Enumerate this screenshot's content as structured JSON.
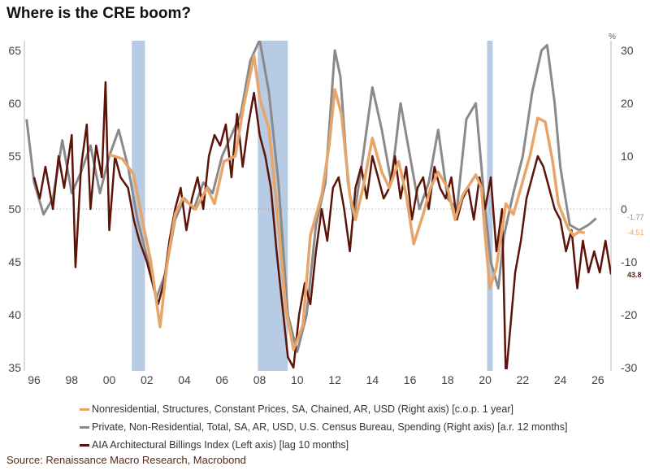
{
  "title": "Where is the CRE boom?",
  "source": "Source: Renaissance Macro Research, Macrobond",
  "chart_data": {
    "type": "line",
    "title": "Where is the CRE boom?",
    "left_axis": {
      "ylim": [
        35,
        65
      ],
      "ticks": [
        35,
        40,
        45,
        50,
        55,
        60,
        65
      ]
    },
    "right_axis": {
      "unit": "%",
      "ylim": [
        -30,
        30
      ],
      "ticks": [
        -30,
        -20,
        -10,
        0,
        10,
        20,
        30
      ]
    },
    "x_axis": {
      "ticks": [
        "96",
        "98",
        "00",
        "02",
        "04",
        "06",
        "08",
        "10",
        "12",
        "14",
        "16",
        "18",
        "20",
        "22",
        "24",
        "26"
      ],
      "xlim": [
        1995.5,
        2026.9
      ]
    },
    "grid": false,
    "reference_line": {
      "axis": "right",
      "value": 0,
      "style": "dotted"
    },
    "recessions": [
      [
        2001.2,
        2001.9
      ],
      [
        2007.9,
        2009.5
      ],
      [
        2020.1,
        2020.4
      ]
    ],
    "legend_position": "bottom",
    "series": [
      {
        "name": "Nonresidential, Structures, Constant Prices, SA, Chained, AR, USD (Right axis) [c.o.p. 1 year]",
        "axis": "right",
        "color": "#e8a56a",
        "last_label": "-4.51",
        "points": [
          [
            2000,
            10.3
          ],
          [
            2000.7,
            9.5
          ],
          [
            2001.3,
            6.5
          ],
          [
            2001.75,
            -2
          ],
          [
            2002.2,
            -9.7
          ],
          [
            2002.7,
            -22.3
          ],
          [
            2003.05,
            -11
          ],
          [
            2003.5,
            -1
          ],
          [
            2003.9,
            2
          ],
          [
            2004.6,
            0
          ],
          [
            2005.2,
            4
          ],
          [
            2005.6,
            1
          ],
          [
            2006.1,
            9
          ],
          [
            2006.7,
            10
          ],
          [
            2007.15,
            19.5
          ],
          [
            2007.7,
            29
          ],
          [
            2008,
            21
          ],
          [
            2008.5,
            15
          ],
          [
            2008.9,
            1
          ],
          [
            2009.4,
            -19
          ],
          [
            2009.8,
            -26.6
          ],
          [
            2010.3,
            -22
          ],
          [
            2010.7,
            -5
          ],
          [
            2011.3,
            2.6
          ],
          [
            2011.7,
            12
          ],
          [
            2012,
            22.6
          ],
          [
            2012.35,
            18
          ],
          [
            2012.8,
            2.6
          ],
          [
            2013.1,
            -2
          ],
          [
            2013.5,
            4
          ],
          [
            2014,
            13.4
          ],
          [
            2014.5,
            7
          ],
          [
            2014.9,
            4
          ],
          [
            2015.4,
            9
          ],
          [
            2015.8,
            2.6
          ],
          [
            2016.2,
            -6.6
          ],
          [
            2016.7,
            -1
          ],
          [
            2017.1,
            4
          ],
          [
            2017.5,
            7
          ],
          [
            2018,
            4
          ],
          [
            2018.4,
            -2
          ],
          [
            2018.8,
            2.6
          ],
          [
            2019.5,
            6.5
          ],
          [
            2019.8,
            4
          ],
          [
            2020,
            -5
          ],
          [
            2020.25,
            -15
          ],
          [
            2020.6,
            -11
          ],
          [
            2021.1,
            1
          ],
          [
            2021.5,
            -1
          ],
          [
            2021.9,
            4
          ],
          [
            2022.4,
            10.3
          ],
          [
            2022.8,
            17.2
          ],
          [
            2023.2,
            16.5
          ],
          [
            2023.6,
            8.8
          ],
          [
            2023.9,
            1
          ],
          [
            2024.4,
            -3.5
          ],
          [
            2024.7,
            -5
          ],
          [
            2025,
            -4.3
          ],
          [
            2025.3,
            -4.51
          ]
        ]
      },
      {
        "name": "Private, Non-Residential, Total, SA, AR, USD, U.S. Census Bureau, Spending (Right axis) [a.r. 12 months]",
        "axis": "right",
        "color": "#8a8a8a",
        "last_label": "-1.77",
        "points": [
          [
            1995.6,
            17
          ],
          [
            1996,
            5
          ],
          [
            1996.5,
            -1
          ],
          [
            1997,
            2
          ],
          [
            1997.5,
            13
          ],
          [
            1998,
            3
          ],
          [
            1998.5,
            7
          ],
          [
            1999,
            12
          ],
          [
            1999.5,
            3
          ],
          [
            2000,
            10
          ],
          [
            2000.5,
            15
          ],
          [
            2001,
            8
          ],
          [
            2001.5,
            -2
          ],
          [
            2002,
            -9
          ],
          [
            2002.5,
            -17
          ],
          [
            2003,
            -12
          ],
          [
            2003.5,
            -2
          ],
          [
            2004,
            2
          ],
          [
            2004.5,
            0
          ],
          [
            2005,
            5
          ],
          [
            2005.5,
            3
          ],
          [
            2006,
            10
          ],
          [
            2006.5,
            14
          ],
          [
            2007,
            18
          ],
          [
            2007.5,
            28
          ],
          [
            2008,
            32
          ],
          [
            2008.5,
            22
          ],
          [
            2009,
            5
          ],
          [
            2009.5,
            -20
          ],
          [
            2010,
            -27
          ],
          [
            2010.5,
            -20
          ],
          [
            2011,
            -3
          ],
          [
            2011.5,
            5
          ],
          [
            2012,
            30
          ],
          [
            2012.3,
            25
          ],
          [
            2012.7,
            5
          ],
          [
            2013,
            -2
          ],
          [
            2013.5,
            10
          ],
          [
            2014,
            23
          ],
          [
            2014.5,
            15
          ],
          [
            2015,
            5
          ],
          [
            2015.5,
            20
          ],
          [
            2016,
            10
          ],
          [
            2016.5,
            0
          ],
          [
            2017,
            5
          ],
          [
            2017.5,
            15
          ],
          [
            2018,
            2
          ],
          [
            2018.5,
            0
          ],
          [
            2019,
            17
          ],
          [
            2019.5,
            20
          ],
          [
            2020,
            0
          ],
          [
            2020.3,
            -10
          ],
          [
            2020.7,
            -15
          ],
          [
            2021,
            -5
          ],
          [
            2021.5,
            3
          ],
          [
            2022,
            10
          ],
          [
            2022.5,
            22
          ],
          [
            2023,
            30
          ],
          [
            2023.3,
            31
          ],
          [
            2023.7,
            20
          ],
          [
            2024,
            8
          ],
          [
            2024.5,
            -3
          ],
          [
            2025,
            -4
          ],
          [
            2025.5,
            -3
          ],
          [
            2025.9,
            -1.77
          ]
        ]
      },
      {
        "name": "AIA Architectural Billings Index (Left axis) [lag 10 months]",
        "axis": "left",
        "color": "#5c1408",
        "last_label": "43.8",
        "points": [
          [
            1996,
            53
          ],
          [
            1996.3,
            51
          ],
          [
            1996.6,
            54
          ],
          [
            1997,
            50
          ],
          [
            1997.3,
            55
          ],
          [
            1997.6,
            52
          ],
          [
            1998,
            57
          ],
          [
            1998.2,
            44.5
          ],
          [
            1998.5,
            54
          ],
          [
            1998.8,
            58
          ],
          [
            1999,
            50
          ],
          [
            1999.3,
            56
          ],
          [
            1999.6,
            53
          ],
          [
            1999.8,
            62
          ],
          [
            2000,
            48
          ],
          [
            2000.3,
            55
          ],
          [
            2000.6,
            53
          ],
          [
            2001,
            52
          ],
          [
            2001.3,
            49
          ],
          [
            2001.6,
            47
          ],
          [
            2002,
            45
          ],
          [
            2002.3,
            43
          ],
          [
            2002.6,
            41
          ],
          [
            2002.9,
            43
          ],
          [
            2003.2,
            47
          ],
          [
            2003.5,
            50
          ],
          [
            2003.8,
            52
          ],
          [
            2004.1,
            48
          ],
          [
            2004.4,
            51
          ],
          [
            2004.7,
            53
          ],
          [
            2005,
            50
          ],
          [
            2005.3,
            55
          ],
          [
            2005.6,
            57
          ],
          [
            2005.9,
            56
          ],
          [
            2006.2,
            58
          ],
          [
            2006.5,
            53
          ],
          [
            2006.8,
            59
          ],
          [
            2007.1,
            54
          ],
          [
            2007.4,
            58
          ],
          [
            2007.7,
            61
          ],
          [
            2008,
            57
          ],
          [
            2008.3,
            55
          ],
          [
            2008.6,
            52
          ],
          [
            2008.9,
            46
          ],
          [
            2009.2,
            41
          ],
          [
            2009.5,
            36
          ],
          [
            2009.8,
            35
          ],
          [
            2010.1,
            40
          ],
          [
            2010.4,
            43
          ],
          [
            2010.7,
            41
          ],
          [
            2011,
            46
          ],
          [
            2011.3,
            50
          ],
          [
            2011.6,
            47
          ],
          [
            2011.9,
            52
          ],
          [
            2012.2,
            53
          ],
          [
            2012.5,
            50
          ],
          [
            2012.8,
            46
          ],
          [
            2013.1,
            52
          ],
          [
            2013.4,
            54
          ],
          [
            2013.7,
            51
          ],
          [
            2014,
            55
          ],
          [
            2014.3,
            53
          ],
          [
            2014.6,
            51
          ],
          [
            2014.9,
            52
          ],
          [
            2015.2,
            55
          ],
          [
            2015.5,
            51
          ],
          [
            2015.8,
            54
          ],
          [
            2016.1,
            49
          ],
          [
            2016.4,
            52
          ],
          [
            2016.7,
            53
          ],
          [
            2017,
            50
          ],
          [
            2017.3,
            54
          ],
          [
            2017.6,
            52
          ],
          [
            2017.9,
            51
          ],
          [
            2018.2,
            53
          ],
          [
            2018.5,
            49
          ],
          [
            2018.8,
            51
          ],
          [
            2019.1,
            52
          ],
          [
            2019.4,
            49
          ],
          [
            2019.7,
            53
          ],
          [
            2020,
            50
          ],
          [
            2020.3,
            53
          ],
          [
            2020.6,
            46
          ],
          [
            2020.9,
            50
          ],
          [
            2021.1,
            34
          ],
          [
            2021.3,
            38
          ],
          [
            2021.6,
            44
          ],
          [
            2021.9,
            47
          ],
          [
            2022.2,
            51
          ],
          [
            2022.5,
            53
          ],
          [
            2022.8,
            55
          ],
          [
            2023.1,
            54
          ],
          [
            2023.4,
            52
          ],
          [
            2023.7,
            50
          ],
          [
            2024,
            49
          ],
          [
            2024.3,
            46
          ],
          [
            2024.6,
            48
          ],
          [
            2024.9,
            42.5
          ],
          [
            2025.2,
            47
          ],
          [
            2025.5,
            44
          ],
          [
            2025.8,
            46
          ],
          [
            2026.1,
            44
          ],
          [
            2026.4,
            47
          ],
          [
            2026.7,
            43.8
          ]
        ]
      }
    ]
  }
}
